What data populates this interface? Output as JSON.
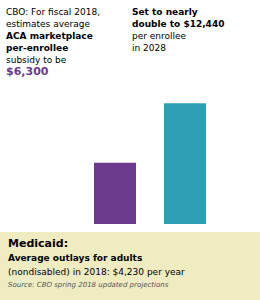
{
  "chart_data": {
    "type": "bar",
    "categories": [
      null,
      null
    ],
    "values": [
      6300,
      12440
    ],
    "colors": [
      "#6B3A8C",
      "#2E9FB5"
    ],
    "ylim": [
      0,
      14000
    ],
    "tick_labels": false,
    "annotations": [
      [
        "CBO: For fiscal 2018,",
        "estimates average",
        "ACA marketplace",
        "per-enrollee",
        "subsidy to be",
        "$6,300"
      ],
      [
        "Set to nearly",
        "double to $12,440",
        "per enrollee",
        "in 2028"
      ],
      [
        "Medicaid:",
        "Average outlays for adults",
        "(nondisabled) in 2018: $4,230 per year",
        "Source: CBO spring 2018 updated projections"
      ]
    ]
  }
}
